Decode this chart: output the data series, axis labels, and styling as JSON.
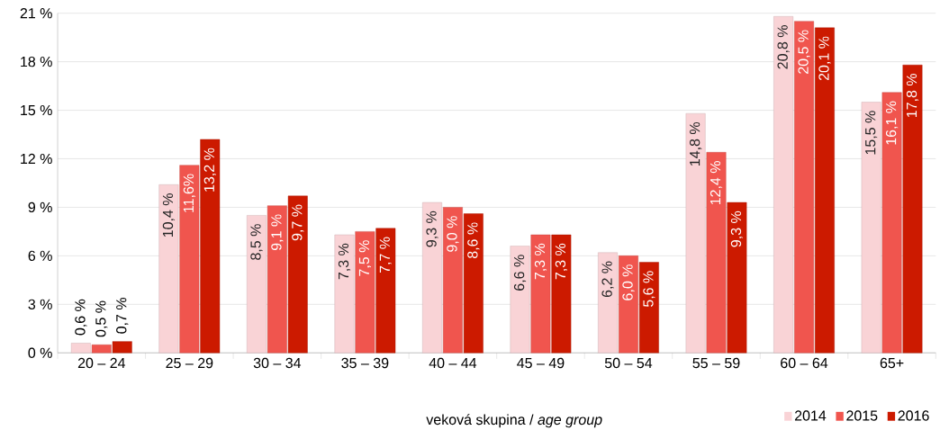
{
  "chart_data": {
    "type": "bar",
    "xlabel": "veková skupina / *age group*",
    "categories": [
      "20 – 24",
      "25 – 29",
      "30 – 34",
      "35 – 39",
      "40 – 44",
      "45 – 49",
      "50 – 54",
      "55 – 59",
      "60 – 64",
      "65+"
    ],
    "series": [
      {
        "name": "2014",
        "color": "#f9d3d6",
        "values": [
          0.6,
          10.4,
          8.5,
          7.3,
          9.3,
          6.6,
          6.2,
          14.8,
          20.8,
          15.5
        ],
        "value_labels": [
          "0,6 %",
          "10,4 %",
          "8,5 %",
          "7,3 %",
          "9,3 %",
          "6,6 %",
          "6,2 %",
          "14,8 %",
          "20,8 %",
          "15,5 %"
        ]
      },
      {
        "name": "2015",
        "color": "#f0554e",
        "values": [
          0.5,
          11.6,
          9.1,
          7.5,
          9.0,
          7.3,
          6.0,
          12.4,
          20.5,
          16.1
        ],
        "value_labels": [
          "0,5 %",
          "11,6%",
          "9,1 %",
          "7,5 %",
          "9,0 %",
          "7,3 %",
          "6,0 %",
          "12,4 %",
          "20,5 %",
          "16,1 %"
        ]
      },
      {
        "name": "2016",
        "color": "#cc1a00",
        "values": [
          0.7,
          13.2,
          9.7,
          7.7,
          8.6,
          7.3,
          5.6,
          9.3,
          20.1,
          17.8
        ],
        "value_labels": [
          "0,7 %",
          "13,2 %",
          "9,7 %",
          "7,7 %",
          "8,6 %",
          "7,3 %",
          "5,6 %",
          "9,3 %",
          "20,1 %",
          "17,8 %"
        ]
      }
    ],
    "ylim": [
      0,
      21
    ],
    "yticks": [
      {
        "value": 0,
        "label": "0 %"
      },
      {
        "value": 3,
        "label": "3 %"
      },
      {
        "value": 6,
        "label": "6 %"
      },
      {
        "value": 9,
        "label": "9 %"
      },
      {
        "value": 12,
        "label": "12 %"
      },
      {
        "value": 15,
        "label": "15 %"
      },
      {
        "value": 18,
        "label": "18 %"
      },
      {
        "value": 21,
        "label": "21 %"
      }
    ],
    "grid": "y",
    "legend": "bottom right"
  }
}
